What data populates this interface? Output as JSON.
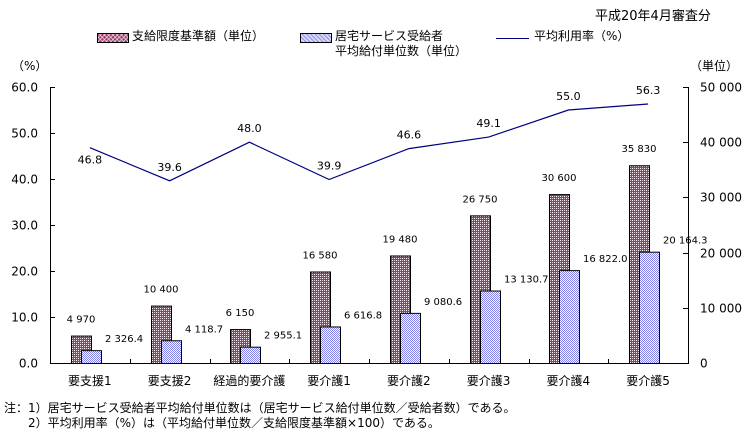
{
  "chart_data": {
    "type": "bar+line",
    "subtitle": "平成20年4月審査分",
    "left_axis_label": "（%）",
    "right_axis_label": "（単位）",
    "categories": [
      "要支援1",
      "要支援2",
      "経過的要介護",
      "要介護1",
      "要介護2",
      "要介護3",
      "要介護4",
      "要介護5"
    ],
    "left_ylim": [
      0,
      60
    ],
    "left_ticks": [
      "0.0",
      "10.0",
      "20.0",
      "30.0",
      "40.0",
      "50.0",
      "60.0"
    ],
    "right_ylim": [
      0,
      50000
    ],
    "right_ticks": [
      "0",
      "10 000",
      "20 000",
      "30 000",
      "40 000",
      "50 000"
    ],
    "series": [
      {
        "name": "支給限度基準額（単位）",
        "type": "bar",
        "axis": "right",
        "color": "#9b3b6c",
        "values": [
          4970,
          10400,
          6150,
          16580,
          19480,
          26750,
          30600,
          35830
        ],
        "labels": [
          "4 970",
          "10 400",
          "6 150",
          "16 580",
          "19 480",
          "26 750",
          "30 600",
          "35 830"
        ]
      },
      {
        "name_line1": "居宅サービス受給者",
        "name_line2": "平均給付単位数（単位）",
        "type": "bar",
        "axis": "right",
        "color": "#d8d8f6",
        "values": [
          2326.4,
          4118.7,
          2955.1,
          6616.8,
          9080.6,
          13130.7,
          16822.0,
          20164.3
        ],
        "labels": [
          "2 326.4",
          "4 118.7",
          "2 955.1",
          "6 616.8",
          "9 080.6",
          "13 130.7",
          "16 822.0",
          "20 164.3"
        ]
      },
      {
        "name": "平均利用率（%）",
        "type": "line",
        "axis": "left",
        "color": "#000080",
        "values": [
          46.8,
          39.6,
          48.0,
          39.9,
          46.6,
          49.1,
          55.0,
          56.3
        ],
        "labels": [
          "46.8",
          "39.6",
          "48.0",
          "39.9",
          "46.6",
          "49.1",
          "55.0",
          "56.3"
        ]
      }
    ],
    "notes": [
      "注：1）居宅サービス受給者平均給付単位数は（居宅サービス給付単位数／受給者数）である。",
      "　　2）平均利用率（%）は（平均給付単位数／支給限度基準額×100）である。"
    ]
  }
}
